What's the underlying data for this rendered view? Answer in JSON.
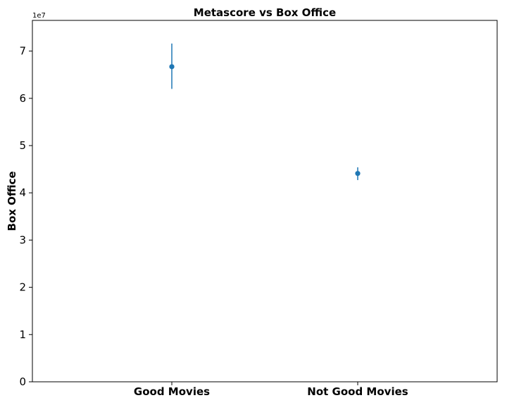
{
  "chart_data": {
    "type": "scatter",
    "title": "Metascore vs Box Office",
    "xlabel": "",
    "ylabel": "Box Office",
    "y_offset_label": "1e7",
    "categories": [
      "Good Movies",
      "Not Good Movies"
    ],
    "series": [
      {
        "values": [
          66700000,
          44100000
        ],
        "error_low": [
          62000000,
          42700000
        ],
        "error_high": [
          71600000,
          45400000
        ]
      }
    ],
    "y_ticks": [
      0,
      10000000,
      20000000,
      30000000,
      40000000,
      50000000,
      60000000,
      70000000
    ],
    "y_tick_labels": [
      "0",
      "1",
      "2",
      "3",
      "4",
      "5",
      "6",
      "7"
    ],
    "ylim": [
      0,
      76500000
    ],
    "xlim": [
      -0.75,
      1.75
    ],
    "grid": false,
    "colors": {
      "marker": "#1f77b4",
      "errorbar": "#1f77b4",
      "axis": "#000000"
    }
  }
}
